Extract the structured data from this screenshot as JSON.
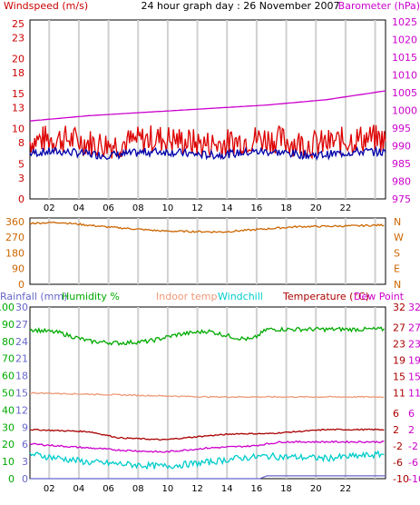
{
  "colors": {
    "windspeed": "#dd0000",
    "wind_avg": "#0000aa",
    "barometer": "#cc00cc",
    "direction": "#cc6600",
    "axis_left_panel1": "#cc0000",
    "axis_right_panel1": "#cc00cc",
    "rainfall": "#6666cc",
    "humidity": "#00aa00",
    "indoor_temp": "#ee9977",
    "windchill": "#00cccc",
    "temperature": "#aa0000",
    "dewpoint": "#cc00cc",
    "grid": "#d0d0d0"
  },
  "chart_data": [
    {
      "type": "line",
      "title": "24 hour graph day : 26 November 2007",
      "x_ticks": [
        "02",
        "04",
        "06",
        "08",
        "10",
        "12",
        "14",
        "16",
        "18",
        "20",
        "22",
        ""
      ],
      "left_axis": {
        "label": "Windspeed (m/s)",
        "ticks": [
          0,
          3,
          5,
          8,
          10,
          13,
          15,
          18,
          20,
          23,
          25
        ],
        "ylim": [
          0,
          25.5
        ]
      },
      "right_axis": {
        "label": "Barometer (hPa)",
        "ticks": [
          975,
          980,
          985,
          990,
          995,
          1000,
          1005,
          1010,
          1015,
          1020,
          1025
        ],
        "ylim": [
          975,
          1025.5
        ]
      },
      "series": [
        {
          "name": "Windspeed (m/s)",
          "axis": "left",
          "style": "gust",
          "mean": 8.2,
          "spread": 1.3
        },
        {
          "name": "",
          "axis": "left",
          "style": "avg",
          "mean": 6.5,
          "spread": 0.6
        },
        {
          "name": "Barometer (hPa)",
          "axis": "right",
          "points": [
            [
              0,
              997
            ],
            [
              4,
              998.5
            ],
            [
              8,
              999.5
            ],
            [
              12,
              1000.5
            ],
            [
              16,
              1001.5
            ],
            [
              20,
              1003
            ],
            [
              24,
              1005.5
            ]
          ]
        }
      ]
    },
    {
      "type": "line",
      "left_axis": {
        "ticks": [
          0,
          90,
          180,
          270,
          360
        ],
        "ylim": [
          0,
          380
        ]
      },
      "right_labels": [
        "N",
        "W",
        "S",
        "E",
        "N"
      ],
      "series": [
        {
          "name": "Wind direction",
          "points": [
            [
              0,
              350
            ],
            [
              2,
              355
            ],
            [
              5,
              330
            ],
            [
              9,
              305
            ],
            [
              13,
              300
            ],
            [
              18,
              330
            ],
            [
              22,
              335
            ],
            [
              24,
              340
            ]
          ]
        }
      ]
    },
    {
      "type": "line",
      "left_labels": {
        "rainfall": "Rainfall (mm)",
        "humidity": "Humidity %"
      },
      "left_humidity_ticks": [
        0,
        10,
        20,
        30,
        40,
        50,
        60,
        70,
        80,
        90,
        100
      ],
      "left_rain_ticks": [
        0,
        3,
        6,
        9,
        12,
        15,
        18,
        21,
        24,
        27,
        30
      ],
      "right_temp_ticks": [
        -10,
        -6,
        -2,
        2,
        6,
        11,
        15,
        19,
        23,
        27,
        32
      ],
      "right_axis_outer_ticks": [
        -10,
        -6,
        -2,
        2,
        6,
        11,
        15,
        19,
        23,
        27,
        32
      ],
      "legend": [
        "Indoor temp",
        "Windchill",
        "Temperature (°C)",
        "Dew Point"
      ],
      "series": [
        {
          "name": "Humidity %",
          "points": [
            [
              0,
              87
            ],
            [
              2,
              85
            ],
            [
              4,
              80
            ],
            [
              6,
              79
            ],
            [
              8,
              80
            ],
            [
              10,
              84
            ],
            [
              12,
              86
            ],
            [
              14,
              82
            ],
            [
              15,
              81
            ],
            [
              16,
              87
            ],
            [
              24,
              87
            ]
          ]
        },
        {
          "name": "Indoor temp",
          "points": [
            [
              0,
              11
            ],
            [
              12,
              10
            ],
            [
              24,
              10
            ]
          ]
        },
        {
          "name": "Temperature (°C)",
          "points": [
            [
              0,
              2
            ],
            [
              4,
              1.5
            ],
            [
              6,
              0
            ],
            [
              9,
              -0.5
            ],
            [
              12,
              0.5
            ],
            [
              14,
              1
            ],
            [
              16,
              1
            ],
            [
              20,
              2
            ],
            [
              24,
              2
            ]
          ]
        },
        {
          "name": "Dew Point",
          "points": [
            [
              0,
              -1.5
            ],
            [
              6,
              -3
            ],
            [
              9,
              -3.5
            ],
            [
              12,
              -2.5
            ],
            [
              15,
              -2
            ],
            [
              17,
              -1
            ],
            [
              24,
              -1
            ]
          ]
        },
        {
          "name": "Windchill",
          "points": [
            [
              0,
              -4
            ],
            [
              4,
              -6
            ],
            [
              9,
              -7
            ],
            [
              12,
              -6
            ],
            [
              14,
              -5
            ],
            [
              16,
              -4.5
            ],
            [
              20,
              -5
            ],
            [
              24,
              -4
            ]
          ]
        },
        {
          "name": "Rainfall (mm)",
          "points": [
            [
              0,
              0
            ],
            [
              15.5,
              0
            ],
            [
              16,
              0.5
            ],
            [
              24,
              0.5
            ]
          ]
        }
      ]
    }
  ]
}
